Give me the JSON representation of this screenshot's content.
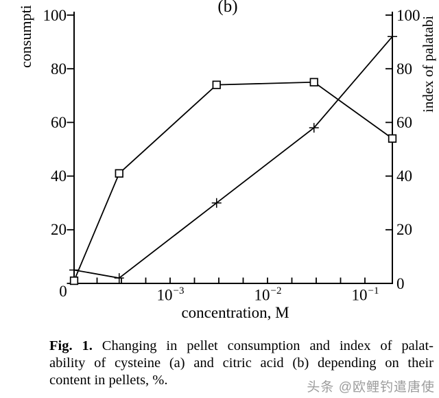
{
  "page": {
    "background": "#ffffff",
    "ink_color": "#000000"
  },
  "chart": {
    "title": "(b)",
    "left_axis_label_visible": "consumpti",
    "right_axis_label_visible": "index of palatabi",
    "x_axis_label": "concentration, M",
    "origin_label": "0"
  },
  "chart_data": {
    "type": "line",
    "title": "(b)",
    "xlabel": "concentration, M",
    "ylabel_left": "consumpti",
    "ylabel_right": "index of palatabi",
    "x_scale": "log",
    "x": [
      0.0001,
      0.0003,
      0.003,
      0.03,
      0.2
    ],
    "x_unit": "M",
    "x_major_ticks": [
      {
        "mantissa": "10",
        "exponent": "−3",
        "value": 0.001
      },
      {
        "mantissa": "10",
        "exponent": "−2",
        "value": 0.01
      },
      {
        "mantissa": "10",
        "exponent": "−1",
        "value": 0.1
      }
    ],
    "y_ticks": [
      0,
      20,
      40,
      60,
      80,
      100
    ],
    "ylim": [
      0,
      100
    ],
    "grid": false,
    "legend": "none",
    "series": [
      {
        "name": "pellet consumption",
        "axis": "left",
        "marker": "square",
        "color": "#000000",
        "values": [
          1,
          41,
          74,
          75,
          54
        ]
      },
      {
        "name": "index of palatability",
        "axis": "right",
        "marker": "plus",
        "color": "#000000",
        "values": [
          5,
          2,
          30,
          58,
          92
        ]
      }
    ]
  },
  "caption": {
    "lines": [
      {
        "bold": "Fig. 1.",
        "text": " Changing in pellet consumption and index of palat-"
      },
      {
        "text": "ability of cysteine (a) and citric acid (b) depending on their"
      },
      {
        "text": "content in pellets, %."
      }
    ]
  },
  "watermark": {
    "text": "头条 @欧鲤钓遣唐使"
  }
}
